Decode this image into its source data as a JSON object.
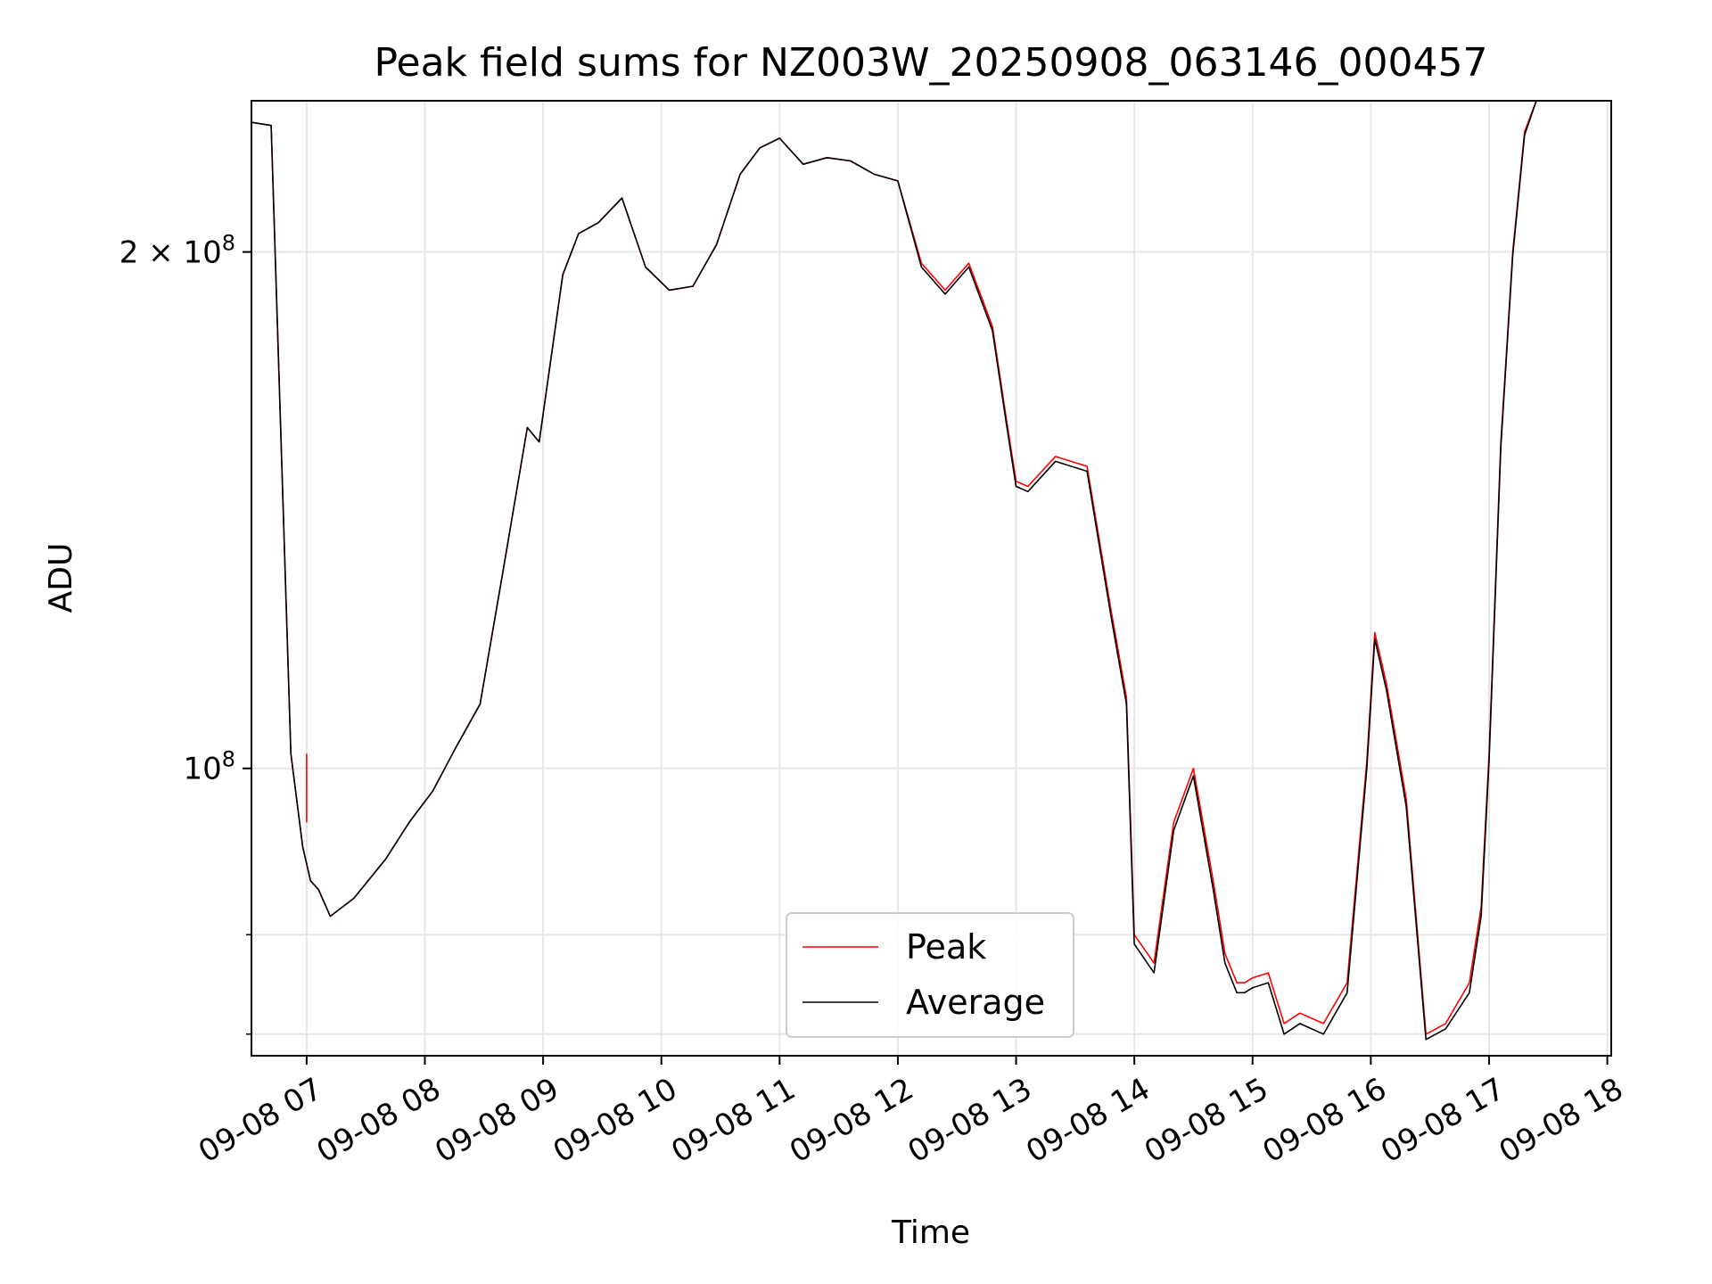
{
  "chart_data": {
    "type": "line",
    "title": "Peak field sums for NZ003W_20250908_063146_000457",
    "xlabel": "Time",
    "ylabel": "ADU",
    "y_scale": "log",
    "ylim": [
      68000000,
      245000000
    ],
    "xlim": [
      "2025-09-08 06:32",
      "2025-09-08 18:02"
    ],
    "x_ticks": [
      "09-08 07",
      "09-08 08",
      "09-08 09",
      "09-08 10",
      "09-08 11",
      "09-08 12",
      "09-08 13",
      "09-08 14",
      "09-08 15",
      "09-08 16",
      "09-08 17",
      "09-08 18"
    ],
    "y_tick_labels": [
      {
        "value": 100000000,
        "label": "10^8",
        "base": "10",
        "exp": "8"
      },
      {
        "value": 200000000,
        "label": "2×10^8",
        "base": "2 × 10",
        "exp": "8"
      }
    ],
    "y_minor_ticks": [
      70000000,
      80000000
    ],
    "grid": true,
    "legend_position": "lower center",
    "colors": {
      "peak": "#ff0000",
      "average": "#000000",
      "grid": "#e6e6e6"
    },
    "x": [
      "06:32",
      "06:42",
      "06:52",
      "06:58",
      "07:02",
      "07:06",
      "07:12",
      "07:24",
      "07:40",
      "07:52",
      "08:04",
      "08:16",
      "08:28",
      "08:40",
      "08:52",
      "08:58",
      "09:02",
      "09:10",
      "09:18",
      "09:28",
      "09:40",
      "09:52",
      "10:04",
      "10:16",
      "10:28",
      "10:40",
      "10:50",
      "11:00",
      "11:12",
      "11:24",
      "11:36",
      "11:48",
      "12:00",
      "12:12",
      "12:24",
      "12:36",
      "12:48",
      "12:55",
      "13:00",
      "13:06",
      "13:20",
      "13:36",
      "13:48",
      "13:56",
      "14:00",
      "14:10",
      "14:20",
      "14:30",
      "14:40",
      "14:46",
      "14:52",
      "14:56",
      "15:00",
      "15:08",
      "15:16",
      "15:24",
      "15:36",
      "15:48",
      "15:58",
      "16:02",
      "16:08",
      "16:18",
      "16:28",
      "16:38",
      "16:50",
      "16:56",
      "17:00",
      "17:06",
      "17:12",
      "17:18",
      "17:24",
      "17:36",
      "17:48",
      "17:58"
    ],
    "series": [
      {
        "name": "Peak",
        "values": [
          238000000,
          237000000,
          102000000,
          90000000,
          86000000,
          85000000,
          82000000,
          84000000,
          88500000,
          93000000,
          97000000,
          103000000,
          109000000,
          131000000,
          158000000,
          155000000,
          167000000,
          194000000,
          205000000,
          208000000,
          215000000,
          196000000,
          190000000,
          191000000,
          202000000,
          222000000,
          230000000,
          233000000,
          225000000,
          227000000,
          226000000,
          222000000,
          220000000,
          197000000,
          190000000,
          197000000,
          181000000,
          160000000,
          147000000,
          146000000,
          152000000,
          150000000,
          124000000,
          110000000,
          80000000,
          77000000,
          93000000,
          100000000,
          86000000,
          78000000,
          75000000,
          75000000,
          75500000,
          76000000,
          71000000,
          72000000,
          71000000,
          75000000,
          101000000,
          120000000,
          112000000,
          96000000,
          70000000,
          71000000,
          75000000,
          83000000,
          102000000,
          155000000,
          200000000,
          235000000,
          245000000,
          245000000,
          245000000,
          245000000
        ]
      },
      {
        "name": "Average",
        "values": [
          238000000,
          237000000,
          102000000,
          90000000,
          86000000,
          85000000,
          82000000,
          84000000,
          88500000,
          93000000,
          97000000,
          103000000,
          109000000,
          131000000,
          158000000,
          155000000,
          167000000,
          194000000,
          205000000,
          208000000,
          215000000,
          196000000,
          190000000,
          191000000,
          202000000,
          222000000,
          230000000,
          233000000,
          225000000,
          227000000,
          226000000,
          222000000,
          220000000,
          196000000,
          189000000,
          196000000,
          180000000,
          159000000,
          146000000,
          145000000,
          151000000,
          149000000,
          123000000,
          109000000,
          79000000,
          76000000,
          92000000,
          99000000,
          85000000,
          77000000,
          74000000,
          74000000,
          74500000,
          75000000,
          70000000,
          71000000,
          70000000,
          74000000,
          100000000,
          119000000,
          111000000,
          95000000,
          69500000,
          70500000,
          74000000,
          82000000,
          101000000,
          154000000,
          199000000,
          234000000,
          245000000,
          245000000,
          245000000,
          245000000
        ]
      }
    ],
    "spike": {
      "series": "Peak",
      "x": "07:00",
      "from": 93000000,
      "to": 102000000
    }
  }
}
